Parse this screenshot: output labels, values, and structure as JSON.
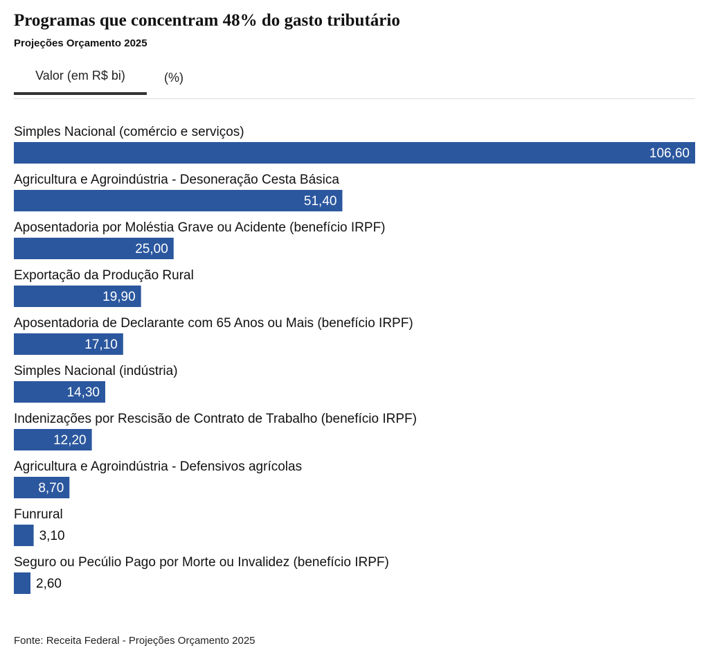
{
  "header": {
    "title": "Programas que concentram 48% do gasto tributário",
    "subtitle": "Projeções Orçamento 2025"
  },
  "tabs": [
    {
      "label": "Valor (em R$ bi)",
      "active": true
    },
    {
      "label": "(%)",
      "active": false
    }
  ],
  "colors": {
    "bar": "#2b579e",
    "label_inside": "#ffffff",
    "label_outside": "#111111"
  },
  "chart_data": {
    "type": "bar",
    "orientation": "horizontal",
    "title": "Programas que concentram 48% do gasto tributário",
    "subtitle": "Projeções Orçamento 2025",
    "unit": "R$ bi",
    "xlim": [
      0,
      106.6
    ],
    "categories": [
      "Simples Nacional (comércio e serviços)",
      "Agricultura e Agroindústria - Desoneração Cesta Básica",
      "Aposentadoria por Moléstia Grave ou Acidente (benefício IRPF)",
      "Exportação da Produção Rural",
      "Aposentadoria de Declarante com 65 Anos ou Mais (benefício IRPF)",
      "Simples Nacional (indústria)",
      "Indenizações por Rescisão de Contrato de Trabalho (benefício IRPF)",
      "Agricultura e Agroindústria - Defensivos agrícolas",
      "Funrural",
      "Seguro ou Pecúlio Pago por Morte ou Invalidez (benefício IRPF)"
    ],
    "values": [
      106.6,
      51.4,
      25.0,
      19.9,
      17.1,
      14.3,
      12.2,
      8.7,
      3.1,
      2.6
    ],
    "value_labels": [
      "106,60",
      "51,40",
      "25,00",
      "19,90",
      "17,10",
      "14,30",
      "12,20",
      "8,70",
      "3,10",
      "2,60"
    ]
  },
  "footer": {
    "source": "Fonte: Receita Federal - Projeções Orçamento 2025"
  }
}
